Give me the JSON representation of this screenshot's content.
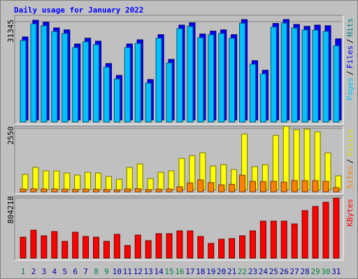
{
  "chart_data": [
    {
      "type": "bar",
      "title": "Daily usage for January 2022",
      "ylim": [
        0,
        31345
      ],
      "yticks": [
        31345
      ],
      "legend_separator": "/",
      "series": [
        {
          "name": "Pages",
          "color": "#00c0ff",
          "values": [
            25450,
            30650,
            30050,
            28250,
            27650,
            23250,
            25050,
            24150,
            17150,
            13450,
            23250,
            24550,
            12150,
            26150,
            18450,
            29150,
            29850,
            26350,
            27250,
            27650,
            26150,
            30850,
            18050,
            15050,
            29650,
            30900,
            29350,
            28750,
            28700,
            28300,
            23800
          ]
        },
        {
          "name": "Files",
          "color": "#0000ff",
          "values": [
            25900,
            31100,
            30500,
            28700,
            28100,
            23700,
            25500,
            24600,
            17600,
            13900,
            23700,
            25000,
            12600,
            26600,
            18900,
            29600,
            30300,
            26800,
            27700,
            28100,
            26600,
            31300,
            18500,
            15500,
            30100,
            31345,
            29800,
            29200,
            29600,
            29400,
            25300
          ]
        },
        {
          "name": "Hits",
          "color": "#008080",
          "values": [
            25900,
            31100,
            30500,
            28700,
            28100,
            23700,
            25500,
            24600,
            17600,
            13900,
            23700,
            25000,
            12600,
            26600,
            18900,
            29600,
            30300,
            26800,
            27700,
            28100,
            26600,
            31300,
            18500,
            15500,
            30100,
            31345,
            29800,
            29200,
            29600,
            29400,
            25300
          ]
        }
      ]
    },
    {
      "type": "bar",
      "ylim": [
        0,
        2550
      ],
      "yticks": [
        2550
      ],
      "legend_separator": "/",
      "series": [
        {
          "name": "Sites",
          "color": "#ff8000",
          "values": [
            110,
            120,
            115,
            115,
            110,
            100,
            110,
            105,
            95,
            85,
            115,
            125,
            90,
            110,
            115,
            200,
            360,
            480,
            370,
            280,
            300,
            670,
            420,
            410,
            420,
            390,
            450,
            450,
            450,
            420,
            170
          ]
        },
        {
          "name": "Visits",
          "color": "#ffff00",
          "values": [
            616,
            896,
            756,
            756,
            672,
            588,
            700,
            672,
            532,
            420,
            896,
            1036,
            448,
            700,
            756,
            1260,
            1372,
            1484,
            952,
            1008,
            812,
            2240,
            924,
            1008,
            2184,
            2550,
            2408,
            2436,
            2324,
            1484,
            560
          ]
        }
      ]
    },
    {
      "type": "bar",
      "ylim": [
        0,
        804218
      ],
      "yticks": [
        804218
      ],
      "categories": [
        "1",
        "2",
        "3",
        "4",
        "5",
        "6",
        "7",
        "8",
        "9",
        "10",
        "11",
        "12",
        "13",
        "14",
        "15",
        "16",
        "17",
        "18",
        "19",
        "20",
        "21",
        "22",
        "23",
        "24",
        "25",
        "26",
        "27",
        "28",
        "29",
        "30",
        "31"
      ],
      "category_colors": [
        "#008040",
        "#0000a0",
        "#0000a0",
        "#0000a0",
        "#0000a0",
        "#0000a0",
        "#0000a0",
        "#008040",
        "#008040",
        "#0000a0",
        "#0000a0",
        "#0000a0",
        "#0000a0",
        "#0000a0",
        "#008040",
        "#008040",
        "#0000a0",
        "#0000a0",
        "#0000a0",
        "#0000a0",
        "#0000a0",
        "#008040",
        "#0000a0",
        "#0000a0",
        "#0000a0",
        "#0000a0",
        "#0000a0",
        "#0000a0",
        "#008040",
        "#008040",
        "#0000a0"
      ],
      "series": [
        {
          "name": "KBytes",
          "color": "#ff0000",
          "values": [
            280500,
            374000,
            299200,
            355300,
            224400,
            346000,
            289900,
            280500,
            224400,
            317900,
            168300,
            308600,
            233800,
            327300,
            327300,
            364700,
            364700,
            289900,
            196400,
            252500,
            261800,
            299200,
            364700,
            495600,
            495600,
            495600,
            458200,
            635900,
            692000,
            748100,
            804218
          ]
        }
      ]
    }
  ]
}
